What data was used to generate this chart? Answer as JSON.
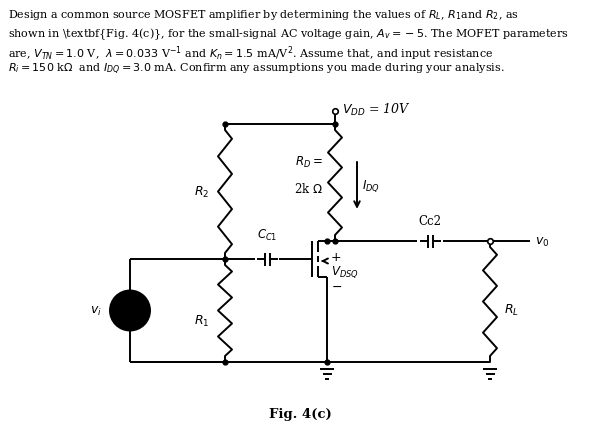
{
  "fig_label": "Fig. 4(c)",
  "vdd_label": "$V_{DD}$ = 10V",
  "rd_label1": "$R_D=$",
  "rd_label2": "2k $\\Omega$",
  "idq_label": "$I_{DQ}$",
  "r2_label": "$R_2$",
  "r1_label": "$R_1$",
  "cc1_label": "$C_{C1}$",
  "cc2_label": "Cc2",
  "vdsq_plus": "+",
  "vdsq_label": "$V_{DSQ}$",
  "vdsq_minus": "$-$",
  "rl_label": "$R_L$",
  "vi_label": "$v_i$",
  "vo_label": "$v_0$",
  "bg_color": "#ffffff",
  "line_color": "#000000",
  "source_color": "#ffb6c1",
  "text_color": "#000000",
  "line1": "Design a common source MOSFET amplifier by determining the values of $R_L$, $R_1$and $R_2$, as",
  "line2": "shown in \\textbf{Fig. 4(c)}, for the small-signal AC voltage gain, $A_v = -5$. The MOFET parameters",
  "line3": "are, $V_{TN} = 1.0$ V,  $\\lambda = 0.033$ V$^{-1}$ and $K_n = 1.5$ mA/V$^2$. Assume that, and input resistance",
  "line4": "$R_i = 150$ k$\\Omega$  and $I_{DQ} = 3.0$ mA. Confirm any assumptions you made during your analysis."
}
